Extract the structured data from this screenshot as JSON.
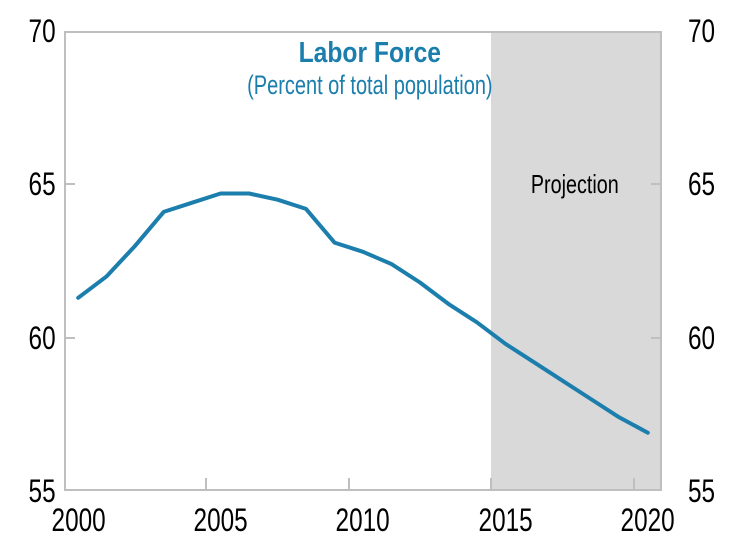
{
  "chart_data": {
    "type": "line",
    "title": "Labor Force",
    "subtitle": "(Percent of total population)",
    "x": [
      2000,
      2001,
      2002,
      2003,
      2004,
      2005,
      2006,
      2007,
      2008,
      2009,
      2010,
      2011,
      2012,
      2013,
      2014,
      2015,
      2016,
      2017,
      2018,
      2019,
      2020
    ],
    "series": [
      {
        "name": "Labor force, percent of total population",
        "values": [
          61.3,
          62.0,
          63.0,
          64.1,
          64.4,
          64.7,
          64.7,
          64.5,
          64.2,
          63.1,
          62.8,
          62.4,
          61.8,
          61.1,
          60.5,
          59.8,
          59.2,
          58.6,
          58.0,
          57.4,
          56.9
        ]
      }
    ],
    "x_ticks": [
      2000,
      2005,
      2010,
      2015,
      2020
    ],
    "x_tick_labels": [
      "2000",
      "2005",
      "2010",
      "2015",
      "2020"
    ],
    "y_ticks": [
      55,
      60,
      65,
      70
    ],
    "y_tick_labels": [
      "55",
      "60",
      "65",
      "70"
    ],
    "ylim": [
      55,
      70
    ],
    "y_axis_sides": "both",
    "grid": false,
    "legend": "none",
    "shaded_region": {
      "label": "Projection",
      "start_year": 2015,
      "end_year": 2020
    },
    "colors": {
      "line": "#1B7EAC",
      "title": "#1B7EAC",
      "subtitle": "#1B7EAC",
      "shade": "#D9D9D9",
      "frame": "#BFBFBF",
      "tick_text": "#000000",
      "projection_text": "#000000"
    }
  }
}
